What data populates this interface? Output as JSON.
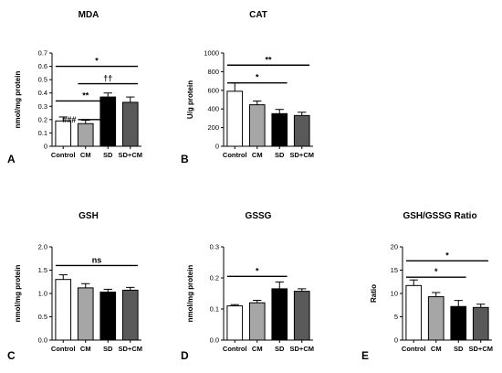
{
  "chart_data": [
    {
      "panel": "A",
      "type": "bar",
      "title": "MDA",
      "ylabel": "nmol/mg protein",
      "categories": [
        "Control",
        "CM",
        "SD",
        "SD+CM"
      ],
      "values": [
        0.19,
        0.17,
        0.37,
        0.33
      ],
      "errors": [
        0.03,
        0.025,
        0.03,
        0.04
      ],
      "ylim": [
        0,
        0.7
      ],
      "yticks": [
        "0",
        "0.1",
        "0.2",
        "0.3",
        "0.4",
        "0.5",
        "0.6",
        "0.7"
      ],
      "tick_values": [
        0,
        0.1,
        0.2,
        0.3,
        0.4,
        0.5,
        0.6,
        0.7
      ],
      "annotations": [
        {
          "label": "*",
          "from": 0,
          "to": 3,
          "y": 0.6
        },
        {
          "label": "††",
          "from": 1,
          "to": 3,
          "y": 0.47
        },
        {
          "label": "**",
          "from": 0,
          "to": 2,
          "y": 0.34
        },
        {
          "label": "###",
          "from": 1,
          "to": 2,
          "y": 0.2,
          "label_left": true
        }
      ]
    },
    {
      "panel": "B",
      "type": "bar",
      "title": "CAT",
      "ylabel": "U/g protein",
      "categories": [
        "Control",
        "CM",
        "SD",
        "SD+CM"
      ],
      "values": [
        590,
        445,
        350,
        330
      ],
      "errors": [
        90,
        40,
        45,
        35
      ],
      "ylim": [
        0,
        1000
      ],
      "yticks": [
        "0",
        "200",
        "400",
        "600",
        "800",
        "1000"
      ],
      "tick_values": [
        0,
        200,
        400,
        600,
        800,
        1000
      ],
      "annotations": [
        {
          "label": "**",
          "from": 0,
          "to": 3,
          "y": 870
        },
        {
          "label": "*",
          "from": 0,
          "to": 2,
          "y": 680
        }
      ]
    },
    {
      "panel": "C",
      "type": "bar",
      "title": "GSH",
      "ylabel": "nmol/mg protein",
      "categories": [
        "Control",
        "CM",
        "SD",
        "SD+CM"
      ],
      "values": [
        1.3,
        1.12,
        1.03,
        1.07
      ],
      "errors": [
        0.1,
        0.09,
        0.06,
        0.06
      ],
      "ylim": [
        0,
        2.0
      ],
      "yticks": [
        "0.0",
        "0.5",
        "1.0",
        "1.5",
        "2.0"
      ],
      "tick_values": [
        0,
        0.5,
        1.0,
        1.5,
        2.0
      ],
      "annotations": [
        {
          "label": "ns",
          "from": 0,
          "to": 3,
          "y": 1.6
        }
      ]
    },
    {
      "panel": "D",
      "type": "bar",
      "title": "GSSG",
      "ylabel": "nmol/mg protein",
      "categories": [
        "Control",
        "CM",
        "SD",
        "SD+CM"
      ],
      "values": [
        0.11,
        0.12,
        0.165,
        0.157
      ],
      "errors": [
        0.004,
        0.008,
        0.022,
        0.008
      ],
      "ylim": [
        0,
        0.3
      ],
      "yticks": [
        "0.0",
        "0.1",
        "0.2",
        "0.3"
      ],
      "tick_values": [
        0,
        0.1,
        0.2,
        0.3
      ],
      "annotations": [
        {
          "label": "*",
          "from": 0,
          "to": 2,
          "y": 0.205
        }
      ]
    },
    {
      "panel": "E",
      "type": "bar",
      "title": "GSH/GSSG Ratio",
      "ylabel": "Ratio",
      "categories": [
        "Control",
        "CM",
        "SD",
        "SD+CM"
      ],
      "values": [
        11.7,
        9.3,
        7.2,
        7.0
      ],
      "errors": [
        1.2,
        0.9,
        1.3,
        0.7
      ],
      "ylim": [
        0,
        20
      ],
      "yticks": [
        "0",
        "5",
        "10",
        "15",
        "20"
      ],
      "tick_values": [
        0,
        5,
        10,
        15,
        20
      ],
      "annotations": [
        {
          "label": "*",
          "from": 0,
          "to": 3,
          "y": 17
        },
        {
          "label": "*",
          "from": 0,
          "to": 2,
          "y": 13.5
        }
      ]
    }
  ],
  "bar_colors": [
    "#ffffff",
    "#a6a6a6",
    "#000000",
    "#595959"
  ]
}
